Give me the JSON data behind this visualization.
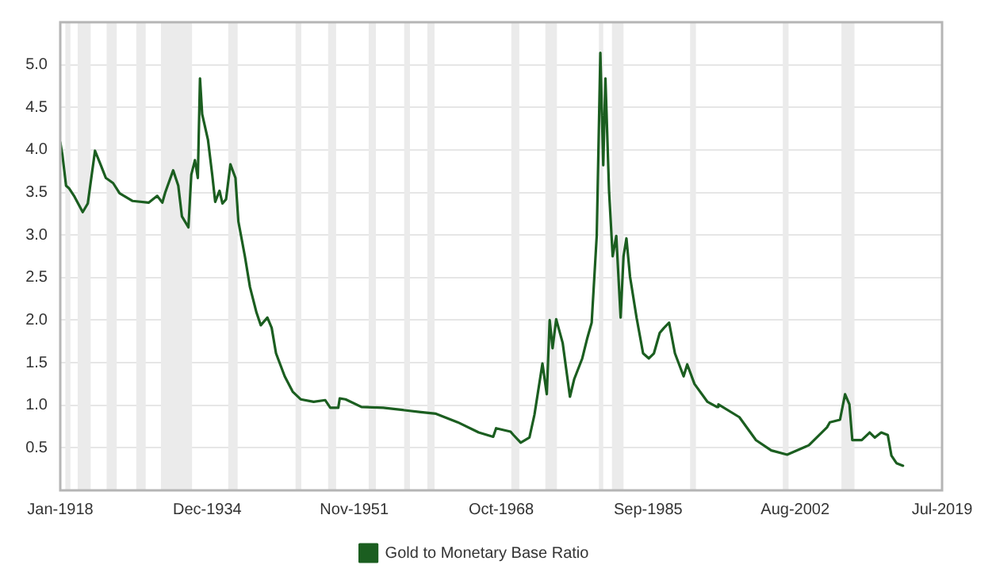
{
  "chart_data": {
    "type": "line",
    "legend": "bottom",
    "grid": "y",
    "marker": "none",
    "line_style": "solid",
    "xlim": [
      "1918-01",
      "2019-07"
    ],
    "xticks": [
      {
        "value": "1918-01",
        "label": "Jan-1918"
      },
      {
        "value": "1934-12",
        "label": "Dec-1934"
      },
      {
        "value": "1951-11",
        "label": "Nov-1951"
      },
      {
        "value": "1968-10",
        "label": "Oct-1968"
      },
      {
        "value": "1985-09",
        "label": "Sep-1985"
      },
      {
        "value": "2002-08",
        "label": "Aug-2002"
      },
      {
        "value": "2019-07",
        "label": "Jul-2019"
      }
    ],
    "ylim": [
      0,
      5.5
    ],
    "yticks": [
      0.5,
      {
        "value": 1,
        "label": "1.0"
      },
      1.5,
      {
        "value": 2,
        "label": "2.0"
      },
      2.5,
      {
        "value": 3,
        "label": "3.0"
      },
      3.5,
      {
        "value": 4,
        "label": "4.0"
      },
      4.5,
      {
        "value": 5,
        "label": "5.0"
      }
    ],
    "x": [
      "1918-01",
      "1918-04",
      "1918-09",
      "1919-01",
      "1919-08",
      "1920-08",
      "1921-03",
      "1922-01",
      "1922-09",
      "1923-04",
      "1924-02",
      "1924-11",
      "1926-05",
      "1928-03",
      "1929-03",
      "1929-10",
      "1930-02",
      "1931-01",
      "1931-08",
      "1932-01",
      "1932-10",
      "1933-02",
      "1933-07",
      "1933-11",
      "1934-02",
      "1934-05",
      "1935-01",
      "1935-07",
      "1935-11",
      "1936-05",
      "1936-09",
      "1937-02",
      "1937-08",
      "1938-03",
      "1938-07",
      "1939-04",
      "1939-11",
      "1940-08",
      "1941-02",
      "1941-11",
      "1942-05",
      "1942-11",
      "1943-11",
      "1944-10",
      "1945-09",
      "1947-03",
      "1948-07",
      "1949-02",
      "1950-01",
      "1950-03",
      "1950-11",
      "1952-09",
      "1955-03",
      "1959-07",
      "1961-04",
      "1963-10",
      "1966-03",
      "1967-11",
      "1968-03",
      "1969-11",
      "1970-03",
      "1971-01",
      "1972-01",
      "1972-08",
      "1973-07",
      "1974-01",
      "1974-05",
      "1974-09",
      "1975-02",
      "1975-11",
      "1976-09",
      "1977-03",
      "1978-02",
      "1978-09",
      "1979-03",
      "1979-10",
      "1980-03",
      "1980-07",
      "1980-10",
      "1981-03",
      "1981-08",
      "1982-01",
      "1982-07",
      "1982-11",
      "1983-03",
      "1983-08",
      "1984-05",
      "1985-02",
      "1985-10",
      "1986-05",
      "1987-01",
      "1987-07",
      "1988-02",
      "1988-10",
      "1989-10",
      "1990-03",
      "1991-01",
      "1992-07",
      "1993-08",
      "1993-10",
      "1996-03",
      "1998-02",
      "1999-11",
      "2001-09",
      "2004-03",
      "2006-04",
      "2006-08",
      "2007-10",
      "2008-05",
      "2008-11",
      "2009-03",
      "2010-04",
      "2011-03",
      "2011-10",
      "2012-07",
      "2013-04",
      "2013-09",
      "2014-04",
      "2015-01"
    ],
    "series": [
      {
        "name": "Gold to Monetary Base Ratio",
        "color": "#1b5e20",
        "values": [
          4.09,
          3.94,
          3.58,
          3.55,
          3.46,
          3.27,
          3.37,
          3.99,
          3.82,
          3.67,
          3.61,
          3.49,
          3.4,
          3.38,
          3.46,
          3.38,
          3.5,
          3.76,
          3.58,
          3.22,
          3.09,
          3.71,
          3.88,
          3.67,
          4.84,
          4.42,
          4.12,
          3.7,
          3.39,
          3.52,
          3.37,
          3.42,
          3.83,
          3.67,
          3.16,
          2.75,
          2.39,
          2.09,
          1.94,
          2.03,
          1.91,
          1.61,
          1.34,
          1.16,
          1.07,
          1.04,
          1.06,
          0.97,
          0.97,
          1.08,
          1.07,
          0.98,
          0.97,
          0.92,
          0.9,
          0.8,
          0.68,
          0.63,
          0.73,
          0.69,
          0.65,
          0.56,
          0.62,
          0.89,
          1.49,
          1.13,
          2.0,
          1.67,
          2.01,
          1.73,
          1.1,
          1.31,
          1.55,
          1.79,
          1.97,
          2.99,
          5.14,
          3.82,
          4.84,
          3.52,
          2.75,
          2.99,
          2.03,
          2.75,
          2.96,
          2.51,
          2.03,
          1.61,
          1.55,
          1.61,
          1.85,
          1.91,
          1.97,
          1.61,
          1.34,
          1.48,
          1.25,
          1.04,
          0.98,
          1.01,
          0.86,
          0.59,
          0.47,
          0.42,
          0.53,
          0.74,
          0.8,
          0.83,
          1.13,
          1.01,
          0.59,
          0.59,
          0.68,
          0.62,
          0.68,
          0.65,
          0.41,
          0.32,
          0.29
        ]
      }
    ],
    "bands": [
      {
        "axis": "x",
        "from": "1918-08",
        "to": "1919-03",
        "color": "#ebebeb"
      },
      {
        "axis": "x",
        "from": "1920-01",
        "to": "1921-07",
        "color": "#ebebeb"
      },
      {
        "axis": "x",
        "from": "1923-05",
        "to": "1924-07",
        "color": "#ebebeb"
      },
      {
        "axis": "x",
        "from": "1926-10",
        "to": "1927-11",
        "color": "#ebebeb"
      },
      {
        "axis": "x",
        "from": "1929-08",
        "to": "1933-03",
        "color": "#ebebeb"
      },
      {
        "axis": "x",
        "from": "1937-05",
        "to": "1938-06",
        "color": "#ebebeb"
      },
      {
        "axis": "x",
        "from": "1945-02",
        "to": "1945-10",
        "color": "#ebebeb"
      },
      {
        "axis": "x",
        "from": "1948-11",
        "to": "1949-10",
        "color": "#ebebeb"
      },
      {
        "axis": "x",
        "from": "1953-07",
        "to": "1954-05",
        "color": "#ebebeb"
      },
      {
        "axis": "x",
        "from": "1957-08",
        "to": "1958-04",
        "color": "#ebebeb"
      },
      {
        "axis": "x",
        "from": "1960-04",
        "to": "1961-02",
        "color": "#ebebeb"
      },
      {
        "axis": "x",
        "from": "1969-12",
        "to": "1970-11",
        "color": "#ebebeb"
      },
      {
        "axis": "x",
        "from": "1973-11",
        "to": "1975-03",
        "color": "#ebebeb"
      },
      {
        "axis": "x",
        "from": "1980-01",
        "to": "1980-07",
        "color": "#ebebeb"
      },
      {
        "axis": "x",
        "from": "1981-07",
        "to": "1982-11",
        "color": "#ebebeb"
      },
      {
        "axis": "x",
        "from": "1990-07",
        "to": "1991-03",
        "color": "#ebebeb"
      },
      {
        "axis": "x",
        "from": "2001-03",
        "to": "2001-11",
        "color": "#ebebeb"
      },
      {
        "axis": "x",
        "from": "2007-12",
        "to": "2009-06",
        "color": "#ebebeb"
      }
    ]
  }
}
